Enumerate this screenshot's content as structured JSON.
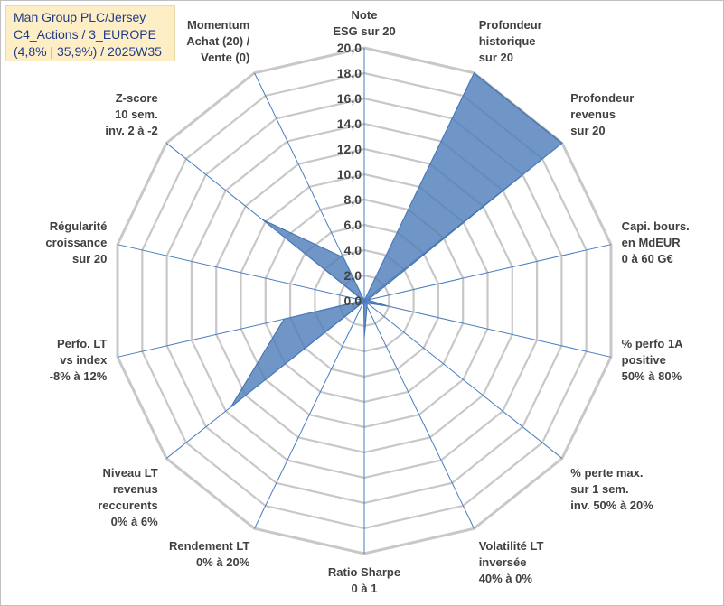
{
  "title_box": {
    "line1": "Man Group PLC/Jersey",
    "line2": "C4_Actions / 3_EUROPE",
    "line3": "(4,8% | 35,9%) / 2025W35"
  },
  "colors": {
    "title_bg": "#fdeec5",
    "title_text": "#1f3c8c",
    "grid": "#c8c8c8",
    "axis_line": "#4a7cc0",
    "fill": "#4f7fba",
    "text": "#404040"
  },
  "chart_data": {
    "type": "radar",
    "ylim": [
      0,
      20
    ],
    "ticks": [
      "0,0",
      "2,0",
      "4,0",
      "6,0",
      "8,0",
      "10,0",
      "12,0",
      "14,0",
      "16,0",
      "18,0",
      "20,0"
    ],
    "grid": true,
    "axes": [
      [
        "Note",
        "ESG sur 20"
      ],
      [
        "Profondeur",
        "historique",
        "sur 20"
      ],
      [
        "Profondeur",
        "revenus",
        "sur 20"
      ],
      [
        "Capi. bours.",
        "en MdEUR",
        "0 à 60 G€"
      ],
      [
        "% perfo 1A",
        "positive",
        "50% à 80%"
      ],
      [
        "% perte max.",
        "sur 1 sem.",
        "inv. 50% à 20%"
      ],
      [
        "Volatilité LT",
        "inversée",
        "40% à 0%"
      ],
      [
        "Ratio Sharpe",
        "0 à 1"
      ],
      [
        "Rendement LT",
        "0% à 20%"
      ],
      [
        "Niveau LT",
        "revenus",
        "reccurents",
        "0% à 6%"
      ],
      [
        "Perfo. LT",
        "vs index",
        "-8% à 12%"
      ],
      [
        "Régularité",
        "croissance",
        "sur 20"
      ],
      [
        "Z-score",
        "10 sem.",
        "inv. 2 à -2"
      ],
      [
        "Momentum",
        "Achat (20) /",
        "Vente (0)"
      ]
    ],
    "series": [
      {
        "values": [
          0,
          20,
          20,
          0.3,
          2.0,
          0.3,
          0.5,
          3.0,
          0.1,
          13.5,
          6.5,
          0.1,
          10.3,
          3.8
        ]
      }
    ]
  }
}
